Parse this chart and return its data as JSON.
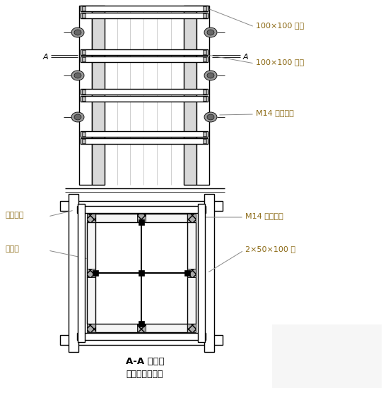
{
  "bg_color": "#ffffff",
  "line_color": "#000000",
  "dark_gray": "#555555",
  "mid_gray": "#888888",
  "light_gray": "#cccccc",
  "title1": "A-A 剖面图",
  "title2": "柱模安装示意图",
  "label_100x100_1": "100×100 万木",
  "label_100x100_2": "100×100 万木",
  "label_M14_elev": "M14 对拉螺栓",
  "label_M14_sec": "M14 对拉螺栓",
  "label_limit": "限位螺栓",
  "label_glue": "胶合板",
  "label_2x50": "2×50×100 方",
  "label_A": "A"
}
